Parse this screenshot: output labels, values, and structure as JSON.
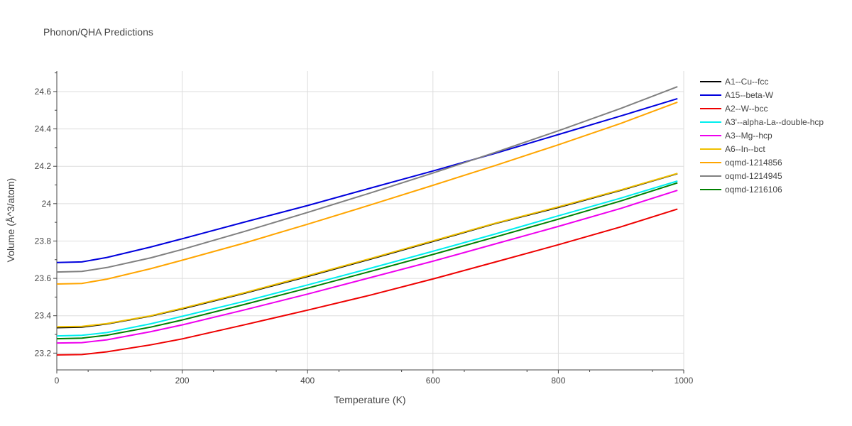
{
  "chart_data": {
    "type": "line",
    "title": "Phonon/QHA Predictions",
    "xlabel": "Temperature (K)",
    "ylabel": "Volume (Å^3/atom)",
    "xlim": [
      0,
      1000
    ],
    "ylim": [
      23.11,
      24.71
    ],
    "xticks": [
      0,
      200,
      400,
      600,
      800,
      1000
    ],
    "yticks": [
      23.2,
      23.4,
      23.6,
      23.8,
      24,
      24.2,
      24.4,
      24.6
    ],
    "ytick_labels": [
      "23.2",
      "23.4",
      "23.6",
      "23.8",
      "24",
      "24.2",
      "24.4",
      "24.6"
    ],
    "grid": true,
    "legend_position": "right",
    "series": [
      {
        "name": "A1--Cu--fcc",
        "color": "#000000",
        "x": [
          0,
          40,
          80,
          150,
          200,
          300,
          400,
          500,
          600,
          700,
          800,
          900,
          990
        ],
        "y": [
          23.336,
          23.339,
          23.356,
          23.398,
          23.437,
          23.521,
          23.61,
          23.703,
          23.798,
          23.894,
          23.98,
          24.072,
          24.161
        ]
      },
      {
        "name": "A15--beta-W",
        "color": "#0000dd",
        "x": [
          0,
          40,
          80,
          150,
          200,
          300,
          400,
          500,
          600,
          700,
          800,
          900,
          990
        ],
        "y": [
          23.685,
          23.688,
          23.712,
          23.768,
          23.812,
          23.902,
          23.99,
          24.083,
          24.175,
          24.27,
          24.37,
          24.47,
          24.562
        ]
      },
      {
        "name": "A2--W--bcc",
        "color": "#ee0000",
        "x": [
          0,
          40,
          80,
          150,
          200,
          300,
          400,
          500,
          600,
          700,
          800,
          900,
          990
        ],
        "y": [
          23.19,
          23.192,
          23.207,
          23.244,
          23.276,
          23.352,
          23.43,
          23.51,
          23.597,
          23.688,
          23.78,
          23.876,
          23.971
        ]
      },
      {
        "name": "A3'--alpha-La--double-hcp",
        "color": "#00eeee",
        "x": [
          0,
          40,
          80,
          150,
          200,
          300,
          400,
          500,
          600,
          700,
          800,
          900,
          990
        ],
        "y": [
          23.292,
          23.295,
          23.31,
          23.357,
          23.397,
          23.478,
          23.565,
          23.654,
          23.745,
          23.838,
          23.935,
          24.03,
          24.121
        ]
      },
      {
        "name": "A3--Mg--hcp",
        "color": "#ee00ee",
        "x": [
          0,
          40,
          80,
          150,
          200,
          300,
          400,
          500,
          600,
          700,
          800,
          900,
          990
        ],
        "y": [
          23.254,
          23.256,
          23.271,
          23.315,
          23.351,
          23.432,
          23.516,
          23.604,
          23.692,
          23.785,
          23.878,
          23.975,
          24.071
        ]
      },
      {
        "name": "A6--In--bct",
        "color": "#f0c000",
        "x": [
          0,
          40,
          80,
          150,
          200,
          300,
          400,
          500,
          600,
          700,
          800,
          900,
          990
        ],
        "y": [
          23.341,
          23.343,
          23.358,
          23.4,
          23.44,
          23.524,
          23.614,
          23.706,
          23.801,
          23.896,
          23.983,
          24.074,
          24.162
        ]
      },
      {
        "name": "oqmd-1214856",
        "color": "#ffa500",
        "x": [
          0,
          40,
          80,
          150,
          200,
          300,
          400,
          500,
          600,
          700,
          800,
          900,
          990
        ],
        "y": [
          23.57,
          23.573,
          23.596,
          23.652,
          23.697,
          23.79,
          23.89,
          23.993,
          24.098,
          24.205,
          24.315,
          24.43,
          24.543
        ]
      },
      {
        "name": "oqmd-1214945",
        "color": "#808080",
        "x": [
          0,
          40,
          80,
          150,
          200,
          300,
          400,
          500,
          600,
          700,
          800,
          900,
          990
        ],
        "y": [
          23.634,
          23.637,
          23.658,
          23.71,
          23.755,
          23.852,
          23.953,
          24.057,
          24.164,
          24.275,
          24.39,
          24.51,
          24.626
        ]
      },
      {
        "name": "oqmd-1216106",
        "color": "#008000",
        "x": [
          0,
          40,
          80,
          150,
          200,
          300,
          400,
          500,
          600,
          700,
          800,
          900,
          990
        ],
        "y": [
          23.277,
          23.28,
          23.296,
          23.339,
          23.377,
          23.461,
          23.548,
          23.637,
          23.728,
          23.822,
          23.917,
          24.015,
          24.111
        ]
      }
    ]
  }
}
